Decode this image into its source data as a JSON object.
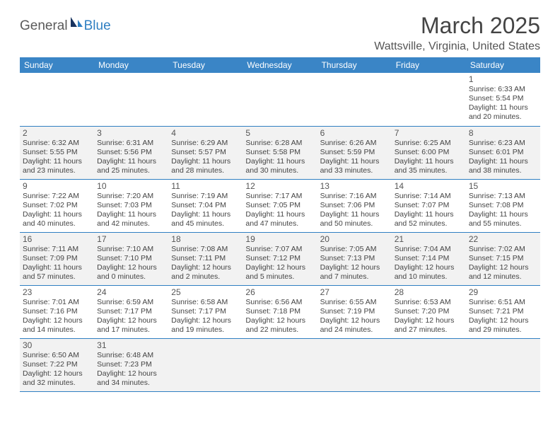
{
  "logo": {
    "general": "General",
    "blue": "Blue"
  },
  "title": "March 2025",
  "location": "Wattsville, Virginia, United States",
  "colors": {
    "header_bg": "#3a85c6",
    "rule": "#2f7fc2",
    "shaded": "#f2f2f2",
    "text": "#444444"
  },
  "day_headers": [
    "Sunday",
    "Monday",
    "Tuesday",
    "Wednesday",
    "Thursday",
    "Friday",
    "Saturday"
  ],
  "weeks": [
    [
      {
        "empty": true
      },
      {
        "empty": true
      },
      {
        "empty": true
      },
      {
        "empty": true
      },
      {
        "empty": true
      },
      {
        "empty": true
      },
      {
        "n": "1",
        "sunrise": "Sunrise: 6:33 AM",
        "sunset": "Sunset: 5:54 PM",
        "d1": "Daylight: 11 hours",
        "d2": "and 20 minutes."
      }
    ],
    [
      {
        "n": "2",
        "sunrise": "Sunrise: 6:32 AM",
        "sunset": "Sunset: 5:55 PM",
        "d1": "Daylight: 11 hours",
        "d2": "and 23 minutes.",
        "shaded": true
      },
      {
        "n": "3",
        "sunrise": "Sunrise: 6:31 AM",
        "sunset": "Sunset: 5:56 PM",
        "d1": "Daylight: 11 hours",
        "d2": "and 25 minutes.",
        "shaded": true
      },
      {
        "n": "4",
        "sunrise": "Sunrise: 6:29 AM",
        "sunset": "Sunset: 5:57 PM",
        "d1": "Daylight: 11 hours",
        "d2": "and 28 minutes.",
        "shaded": true
      },
      {
        "n": "5",
        "sunrise": "Sunrise: 6:28 AM",
        "sunset": "Sunset: 5:58 PM",
        "d1": "Daylight: 11 hours",
        "d2": "and 30 minutes.",
        "shaded": true
      },
      {
        "n": "6",
        "sunrise": "Sunrise: 6:26 AM",
        "sunset": "Sunset: 5:59 PM",
        "d1": "Daylight: 11 hours",
        "d2": "and 33 minutes.",
        "shaded": true
      },
      {
        "n": "7",
        "sunrise": "Sunrise: 6:25 AM",
        "sunset": "Sunset: 6:00 PM",
        "d1": "Daylight: 11 hours",
        "d2": "and 35 minutes.",
        "shaded": true
      },
      {
        "n": "8",
        "sunrise": "Sunrise: 6:23 AM",
        "sunset": "Sunset: 6:01 PM",
        "d1": "Daylight: 11 hours",
        "d2": "and 38 minutes.",
        "shaded": true
      }
    ],
    [
      {
        "n": "9",
        "sunrise": "Sunrise: 7:22 AM",
        "sunset": "Sunset: 7:02 PM",
        "d1": "Daylight: 11 hours",
        "d2": "and 40 minutes."
      },
      {
        "n": "10",
        "sunrise": "Sunrise: 7:20 AM",
        "sunset": "Sunset: 7:03 PM",
        "d1": "Daylight: 11 hours",
        "d2": "and 42 minutes."
      },
      {
        "n": "11",
        "sunrise": "Sunrise: 7:19 AM",
        "sunset": "Sunset: 7:04 PM",
        "d1": "Daylight: 11 hours",
        "d2": "and 45 minutes."
      },
      {
        "n": "12",
        "sunrise": "Sunrise: 7:17 AM",
        "sunset": "Sunset: 7:05 PM",
        "d1": "Daylight: 11 hours",
        "d2": "and 47 minutes."
      },
      {
        "n": "13",
        "sunrise": "Sunrise: 7:16 AM",
        "sunset": "Sunset: 7:06 PM",
        "d1": "Daylight: 11 hours",
        "d2": "and 50 minutes."
      },
      {
        "n": "14",
        "sunrise": "Sunrise: 7:14 AM",
        "sunset": "Sunset: 7:07 PM",
        "d1": "Daylight: 11 hours",
        "d2": "and 52 minutes."
      },
      {
        "n": "15",
        "sunrise": "Sunrise: 7:13 AM",
        "sunset": "Sunset: 7:08 PM",
        "d1": "Daylight: 11 hours",
        "d2": "and 55 minutes."
      }
    ],
    [
      {
        "n": "16",
        "sunrise": "Sunrise: 7:11 AM",
        "sunset": "Sunset: 7:09 PM",
        "d1": "Daylight: 11 hours",
        "d2": "and 57 minutes.",
        "shaded": true
      },
      {
        "n": "17",
        "sunrise": "Sunrise: 7:10 AM",
        "sunset": "Sunset: 7:10 PM",
        "d1": "Daylight: 12 hours",
        "d2": "and 0 minutes.",
        "shaded": true
      },
      {
        "n": "18",
        "sunrise": "Sunrise: 7:08 AM",
        "sunset": "Sunset: 7:11 PM",
        "d1": "Daylight: 12 hours",
        "d2": "and 2 minutes.",
        "shaded": true
      },
      {
        "n": "19",
        "sunrise": "Sunrise: 7:07 AM",
        "sunset": "Sunset: 7:12 PM",
        "d1": "Daylight: 12 hours",
        "d2": "and 5 minutes.",
        "shaded": true
      },
      {
        "n": "20",
        "sunrise": "Sunrise: 7:05 AM",
        "sunset": "Sunset: 7:13 PM",
        "d1": "Daylight: 12 hours",
        "d2": "and 7 minutes.",
        "shaded": true
      },
      {
        "n": "21",
        "sunrise": "Sunrise: 7:04 AM",
        "sunset": "Sunset: 7:14 PM",
        "d1": "Daylight: 12 hours",
        "d2": "and 10 minutes.",
        "shaded": true
      },
      {
        "n": "22",
        "sunrise": "Sunrise: 7:02 AM",
        "sunset": "Sunset: 7:15 PM",
        "d1": "Daylight: 12 hours",
        "d2": "and 12 minutes.",
        "shaded": true
      }
    ],
    [
      {
        "n": "23",
        "sunrise": "Sunrise: 7:01 AM",
        "sunset": "Sunset: 7:16 PM",
        "d1": "Daylight: 12 hours",
        "d2": "and 14 minutes."
      },
      {
        "n": "24",
        "sunrise": "Sunrise: 6:59 AM",
        "sunset": "Sunset: 7:17 PM",
        "d1": "Daylight: 12 hours",
        "d2": "and 17 minutes."
      },
      {
        "n": "25",
        "sunrise": "Sunrise: 6:58 AM",
        "sunset": "Sunset: 7:17 PM",
        "d1": "Daylight: 12 hours",
        "d2": "and 19 minutes."
      },
      {
        "n": "26",
        "sunrise": "Sunrise: 6:56 AM",
        "sunset": "Sunset: 7:18 PM",
        "d1": "Daylight: 12 hours",
        "d2": "and 22 minutes."
      },
      {
        "n": "27",
        "sunrise": "Sunrise: 6:55 AM",
        "sunset": "Sunset: 7:19 PM",
        "d1": "Daylight: 12 hours",
        "d2": "and 24 minutes."
      },
      {
        "n": "28",
        "sunrise": "Sunrise: 6:53 AM",
        "sunset": "Sunset: 7:20 PM",
        "d1": "Daylight: 12 hours",
        "d2": "and 27 minutes."
      },
      {
        "n": "29",
        "sunrise": "Sunrise: 6:51 AM",
        "sunset": "Sunset: 7:21 PM",
        "d1": "Daylight: 12 hours",
        "d2": "and 29 minutes."
      }
    ],
    [
      {
        "n": "30",
        "sunrise": "Sunrise: 6:50 AM",
        "sunset": "Sunset: 7:22 PM",
        "d1": "Daylight: 12 hours",
        "d2": "and 32 minutes.",
        "shaded": true
      },
      {
        "n": "31",
        "sunrise": "Sunrise: 6:48 AM",
        "sunset": "Sunset: 7:23 PM",
        "d1": "Daylight: 12 hours",
        "d2": "and 34 minutes.",
        "shaded": true
      },
      {
        "empty": true,
        "shaded": true
      },
      {
        "empty": true,
        "shaded": true
      },
      {
        "empty": true,
        "shaded": true
      },
      {
        "empty": true,
        "shaded": true
      },
      {
        "empty": true,
        "shaded": true
      }
    ]
  ]
}
